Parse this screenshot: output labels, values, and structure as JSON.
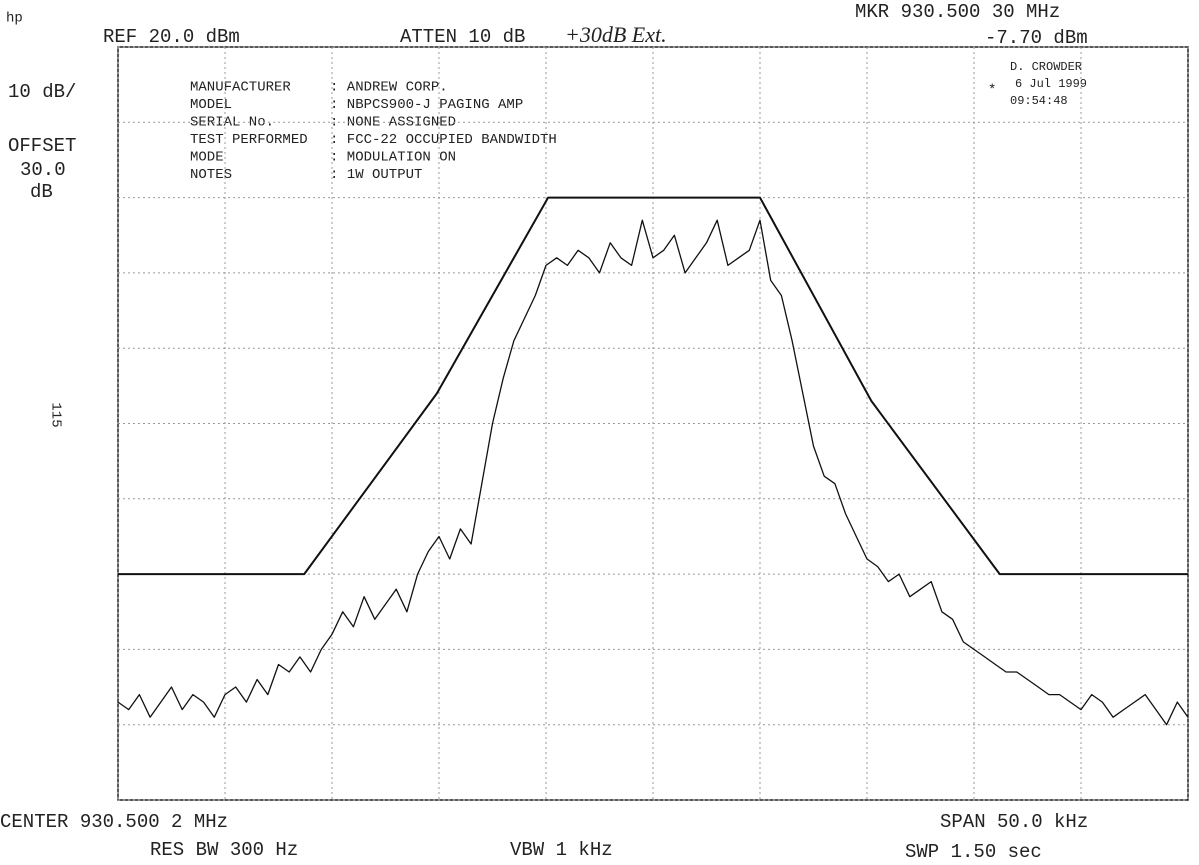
{
  "header": {
    "hp": "hp",
    "ref": "REF  20.0 dBm",
    "atten": "ATTEN 10 dB",
    "atten_note": "+30dB Ext.",
    "marker_freq": "MKR 930.500 30 MHz",
    "marker_level": "-7.70 dBm",
    "scale": "10 dB/",
    "offset_label": "OFFSET",
    "offset_value": "30.0",
    "offset_unit": "dB",
    "side_note": "115"
  },
  "info": {
    "rows": [
      [
        "MANUFACTURER",
        ": ANDREW CORP."
      ],
      [
        "MODEL",
        ": NBPCS900-J PAGING AMP"
      ],
      [
        "SERIAL No.",
        ": NONE ASSIGNED"
      ],
      [
        "TEST PERFORMED",
        ": FCC-22 OCCUPIED BANDWIDTH"
      ],
      [
        "MODE",
        ": MODULATION ON"
      ],
      [
        "NOTES",
        ": 1W OUTPUT"
      ]
    ],
    "operator": "D. CROWDER",
    "date": "6 Jul 1999",
    "time": "09:54:48",
    "star": "*"
  },
  "footer": {
    "center": "CENTER 930.500 2 MHz",
    "res_bw": "RES BW 300  Hz",
    "vbw": "VBW 1 kHz",
    "span": "SPAN 50.0 kHz",
    "sweep": "SWP 1.50  sec"
  },
  "chart_data": {
    "type": "line",
    "grid": true,
    "xlim": [
      930.4752,
      930.5252
    ],
    "ylim": [
      -80,
      20
    ],
    "xticks": [
      930.4752,
      930.4802,
      930.4852,
      930.4902,
      930.4952,
      930.5002,
      930.5052,
      930.5102,
      930.5152,
      930.5202,
      930.5252
    ],
    "yticks": [
      20,
      10,
      0,
      -10,
      -20,
      -30,
      -40,
      -50,
      -60,
      -70,
      -80
    ],
    "x": [
      930.4752,
      930.4757,
      930.4762,
      930.4767,
      930.4772,
      930.4777,
      930.4782,
      930.4787,
      930.4792,
      930.4797,
      930.4802,
      930.4807,
      930.4812,
      930.4817,
      930.4822,
      930.4827,
      930.4832,
      930.4837,
      930.4842,
      930.4847,
      930.4852,
      930.4857,
      930.4862,
      930.4867,
      930.4872,
      930.4877,
      930.4882,
      930.4887,
      930.4892,
      930.4897,
      930.4902,
      930.4907,
      930.4912,
      930.4917,
      930.4922,
      930.4927,
      930.4932,
      930.4937,
      930.4942,
      930.4947,
      930.4952,
      930.4957,
      930.4962,
      930.4967,
      930.4972,
      930.4977,
      930.4982,
      930.4987,
      930.4992,
      930.4997,
      930.5002,
      930.5007,
      930.5012,
      930.5017,
      930.5022,
      930.5027,
      930.5032,
      930.5037,
      930.5042,
      930.5047,
      930.5052,
      930.5057,
      930.5062,
      930.5067,
      930.5072,
      930.5077,
      930.5082,
      930.5087,
      930.5092,
      930.5097,
      930.5102,
      930.5107,
      930.5112,
      930.5117,
      930.5122,
      930.5127,
      930.5132,
      930.5137,
      930.5142,
      930.5147,
      930.5152,
      930.5157,
      930.5162,
      930.5167,
      930.5172,
      930.5177,
      930.5182,
      930.5187,
      930.5192,
      930.5197,
      930.5202,
      930.5207,
      930.5212,
      930.5217,
      930.5222,
      930.5227,
      930.5232,
      930.5237,
      930.5242,
      930.5247,
      930.5252
    ],
    "series": [
      {
        "color": "#111111",
        "values": [
          -67,
          -68,
          -66,
          -69,
          -67,
          -65,
          -68,
          -66,
          -67,
          -69,
          -66,
          -65,
          -67,
          -64,
          -66,
          -62,
          -63,
          -61,
          -63,
          -60,
          -58,
          -55,
          -57,
          -53,
          -56,
          -54,
          -52,
          -55,
          -50,
          -47,
          -45,
          -48,
          -44,
          -46,
          -38,
          -30,
          -24,
          -19,
          -16,
          -13,
          -9,
          -8,
          -9,
          -7,
          -8,
          -10,
          -6,
          -8,
          -9,
          -3,
          -8,
          -7,
          -5,
          -10,
          -8,
          -6,
          -3,
          -9,
          -8,
          -7,
          -3,
          -11,
          -13,
          -19,
          -26,
          -33,
          -37,
          -38,
          -42,
          -45,
          -48,
          -49,
          -51,
          -50,
          -53,
          -52,
          -51,
          -55,
          -56,
          -59,
          -60,
          -61,
          -62,
          -63,
          -63,
          -64,
          -65,
          -66,
          -66,
          -67,
          -68,
          -66,
          -67,
          -69,
          -68,
          -67,
          -66,
          -68,
          -70,
          -67,
          -69
        ]
      },
      {
        "color": "#111111",
        "x": [
          930.4752,
          930.4839,
          930.4901,
          930.4953,
          930.5052,
          930.5104,
          930.5164,
          930.5252
        ],
        "values": [
          -50,
          -50,
          -26,
          0,
          0,
          -27,
          -50,
          -50
        ]
      }
    ]
  }
}
